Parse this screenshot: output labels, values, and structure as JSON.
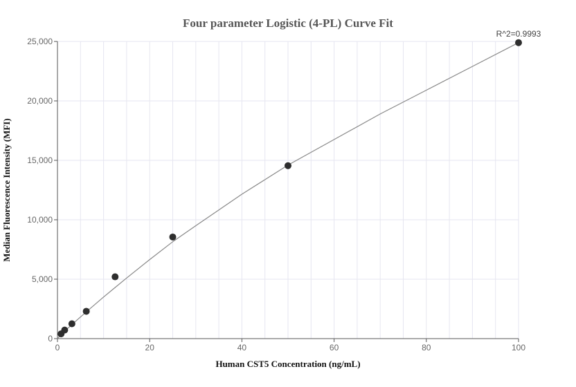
{
  "chart_data": {
    "type": "scatter",
    "title": "Four parameter Logistic (4-PL) Curve Fit",
    "xlabel": "Human CST5 Concentration (ng/mL)",
    "ylabel": "Median Fluorescence Intensity (MFI)",
    "xlim": [
      0,
      100
    ],
    "ylim": [
      0,
      25000
    ],
    "x_ticks": [
      0,
      20,
      40,
      60,
      80,
      100
    ],
    "x_tick_labels": [
      "0",
      "20",
      "40",
      "60",
      "80",
      "100"
    ],
    "y_ticks": [
      0,
      5000,
      10000,
      15000,
      20000,
      25000
    ],
    "y_tick_labels": [
      "0",
      "5,000",
      "10,000",
      "15,000",
      "20,000",
      "25,000"
    ],
    "grid": true,
    "annotation": "R^2=0.9993",
    "points": {
      "x": [
        0.78,
        1.56,
        3.13,
        6.25,
        12.5,
        25,
        50,
        100
      ],
      "y": [
        400,
        720,
        1250,
        2300,
        5200,
        8550,
        14550,
        24900
      ]
    },
    "fit_curve": {
      "x": [
        0,
        0.78,
        1.56,
        3.13,
        6.25,
        10,
        12.5,
        15,
        20,
        25,
        30,
        40,
        50,
        60,
        70,
        80,
        90,
        100
      ],
      "y": [
        0,
        330,
        620,
        1180,
        2250,
        3500,
        4300,
        5100,
        6650,
        8150,
        9500,
        12150,
        14600,
        16750,
        18900,
        20900,
        22900,
        24900
      ]
    },
    "colors": {
      "point": "#2e2e2e",
      "curve": "#888888",
      "grid": "#e6e6f0",
      "axis": "#555555"
    }
  }
}
